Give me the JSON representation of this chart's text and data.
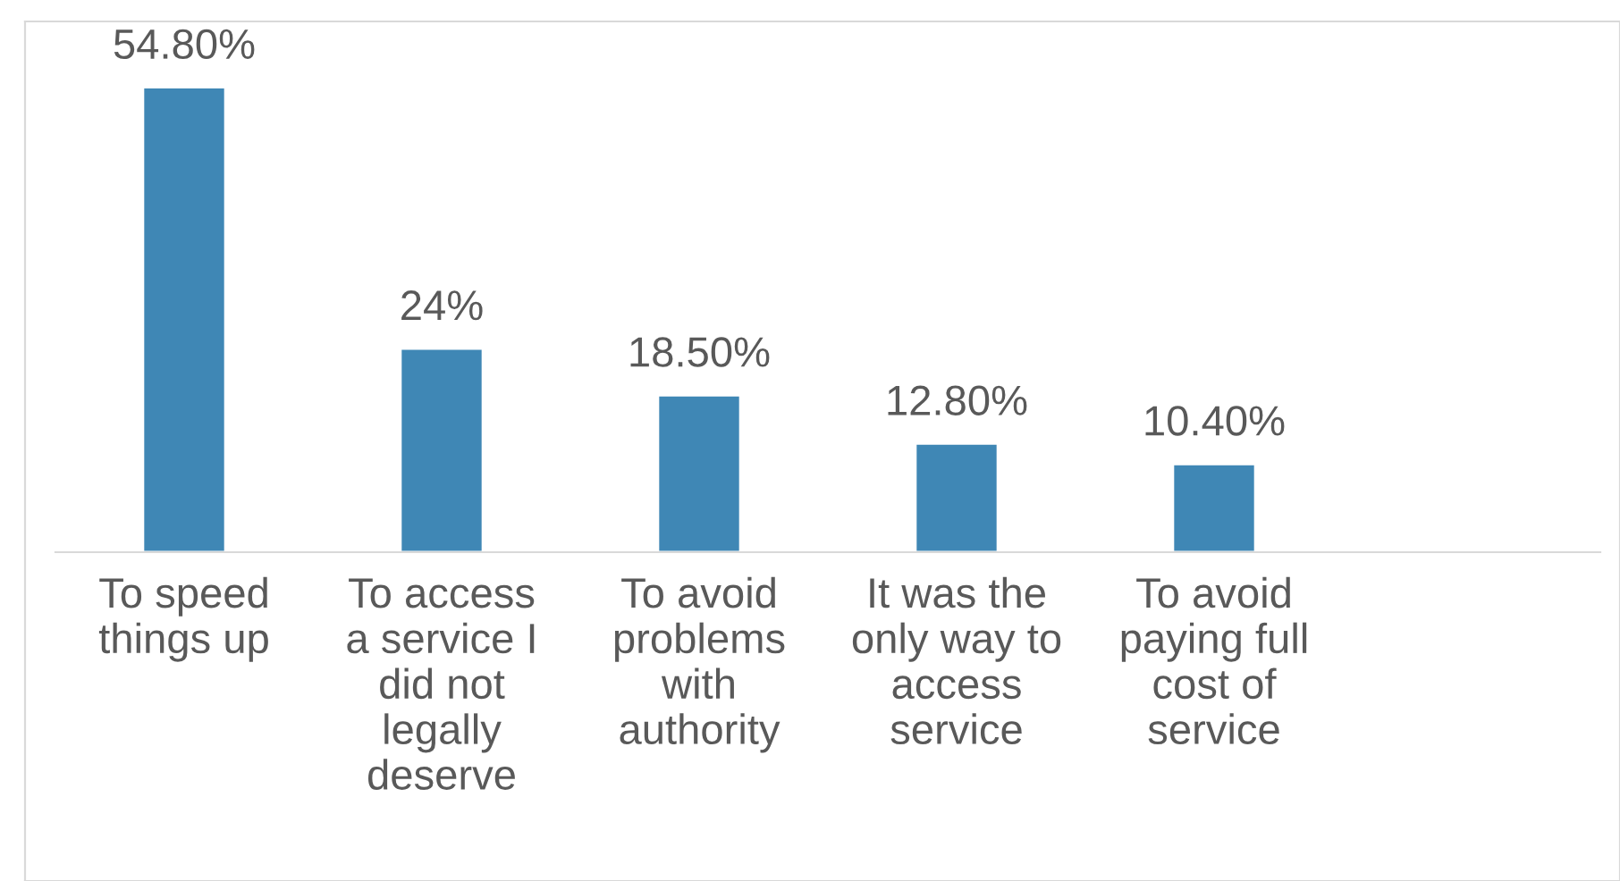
{
  "chart_data": {
    "type": "bar",
    "categories": [
      "To speed\nthings up",
      "To access\na service I\ndid not\nlegally\ndeserve",
      "To avoid\nproblems\nwith\nauthority",
      "It was the\nonly way to\naccess\nservice",
      "To avoid\npaying full\ncost of\nservice",
      null
    ],
    "values": [
      54.8,
      24,
      18.5,
      12.8,
      10.4,
      null
    ],
    "value_labels": [
      "54.80%",
      "24%",
      "18.50%",
      "12.80%",
      "10.40%",
      null
    ],
    "color": "#3f87b5",
    "grid": false,
    "legend": false
  }
}
